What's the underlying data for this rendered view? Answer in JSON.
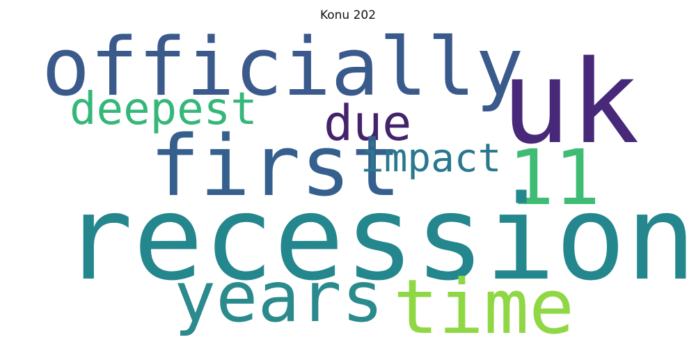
{
  "title": "Konu 202",
  "words": [
    {
      "id": "officially",
      "text": "officially",
      "color": "#3b5a8c"
    },
    {
      "id": "uk",
      "text": "uk",
      "color": "#482878"
    },
    {
      "id": "deepest",
      "text": "deepest",
      "color": "#35b779"
    },
    {
      "id": "due",
      "text": "due",
      "color": "#44236a"
    },
    {
      "id": "first",
      "text": "first",
      "color": "#355f8d"
    },
    {
      "id": "impact",
      "text": "impact",
      "color": "#2a788e"
    },
    {
      "id": "11",
      "text": "11",
      "color": "#3fbc73"
    },
    {
      "id": "recession",
      "text": "recession",
      "color": "#25878e"
    },
    {
      "id": "years",
      "text": "years",
      "color": "#2a8a8c"
    },
    {
      "id": "time",
      "text": "time",
      "color": "#8fd744"
    }
  ]
}
